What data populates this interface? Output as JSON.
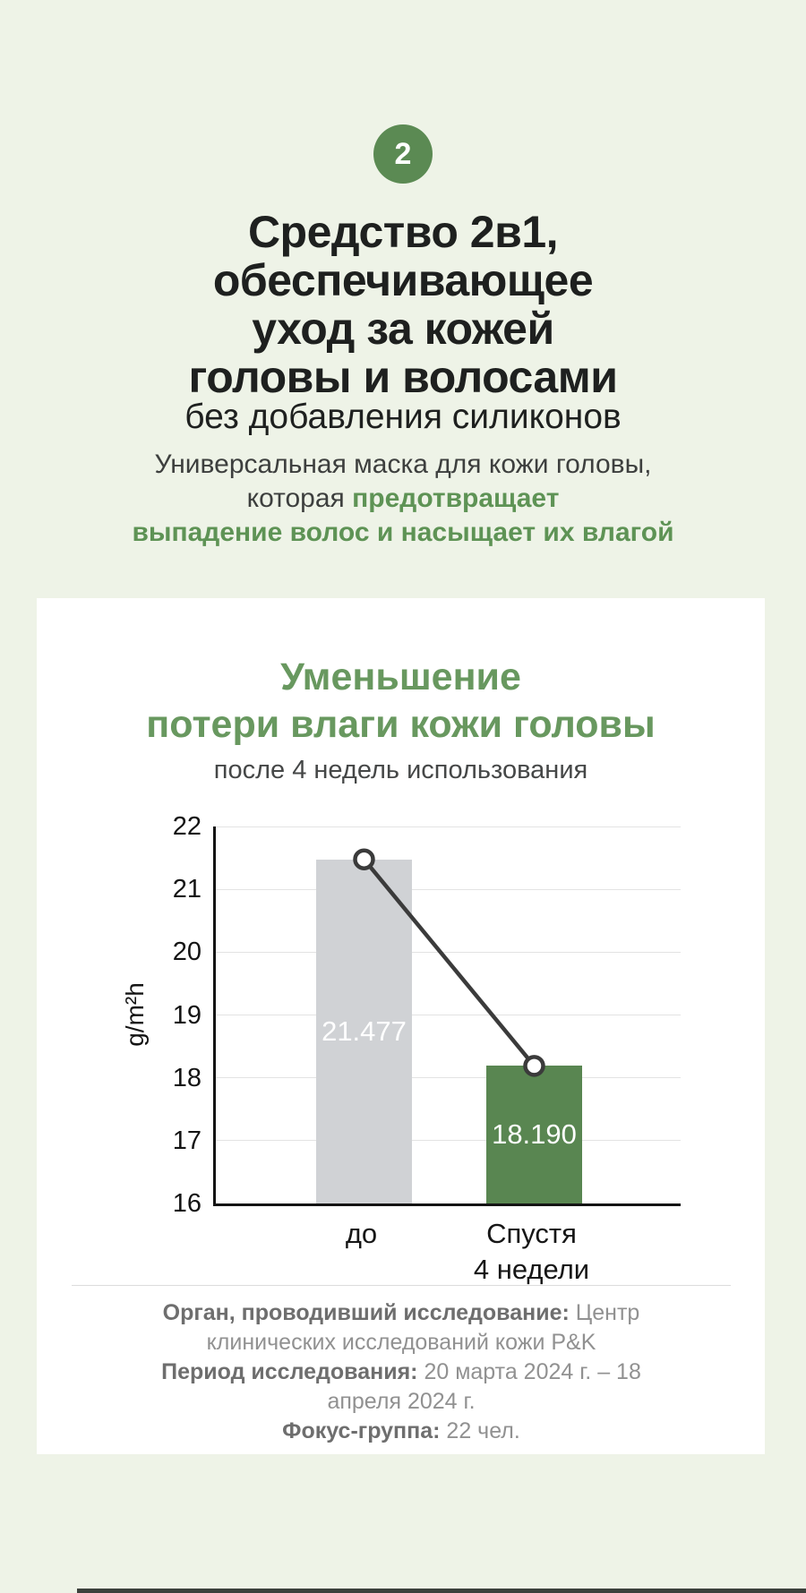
{
  "page": {
    "background_color": "#eef3e7",
    "badge_number": "2"
  },
  "header": {
    "title_line1": "Средство 2в1,",
    "title_line2": "обеспечивающее",
    "title_line3": "уход за кожей",
    "title_line4": "головы и волосами",
    "subtitle": "без добавления силиконов",
    "intro_line1": "Универсальная маска для кожи головы,",
    "intro_line2_prefix": "которая ",
    "intro_line2_highlight": "предотвращает",
    "intro_line3_highlight": "выпадение волос и насыщает их влагой"
  },
  "card": {
    "chart_title_line1": "Уменьшение",
    "chart_title_line2": "потери влаги кожи головы",
    "chart_subtitle": "после 4 недель использования",
    "footnotes": [
      {
        "label": "Орган, проводивший исследование:",
        "value": " Центр клинических исследований кожи P&K"
      },
      {
        "label": "Период исследования:",
        "value": " 20 марта 2024 г. – 18 апреля 2024 г."
      },
      {
        "label": "Фокус-группа:",
        "value": " 22 чел."
      }
    ]
  },
  "chart_data": {
    "type": "bar",
    "title": "Уменьшение потери влаги кожи головы",
    "subtitle": "после 4 недель использования",
    "categories": [
      "до",
      "Спустя\n4 недели"
    ],
    "values": [
      21.477,
      18.19
    ],
    "value_labels": [
      "21.477",
      "18.190"
    ],
    "bar_colors": [
      "#d0d2d5",
      "#598651"
    ],
    "value_label_color": "#ffffff",
    "xlabel": "",
    "ylabel": "g/m²h",
    "ylim": [
      16,
      22
    ],
    "yticks": [
      16,
      17,
      18,
      19,
      20,
      21,
      22
    ],
    "grid": true,
    "legend": "none",
    "connector_line": true,
    "connector_color": "#3b3b3b",
    "marker_fill": "#ffffff"
  },
  "colors": {
    "accent_green": "#5e9355",
    "badge_green": "#5b8a53",
    "heading_green": "#68985f",
    "bar_gray": "#d0d2d5",
    "bar_green": "#598651"
  }
}
